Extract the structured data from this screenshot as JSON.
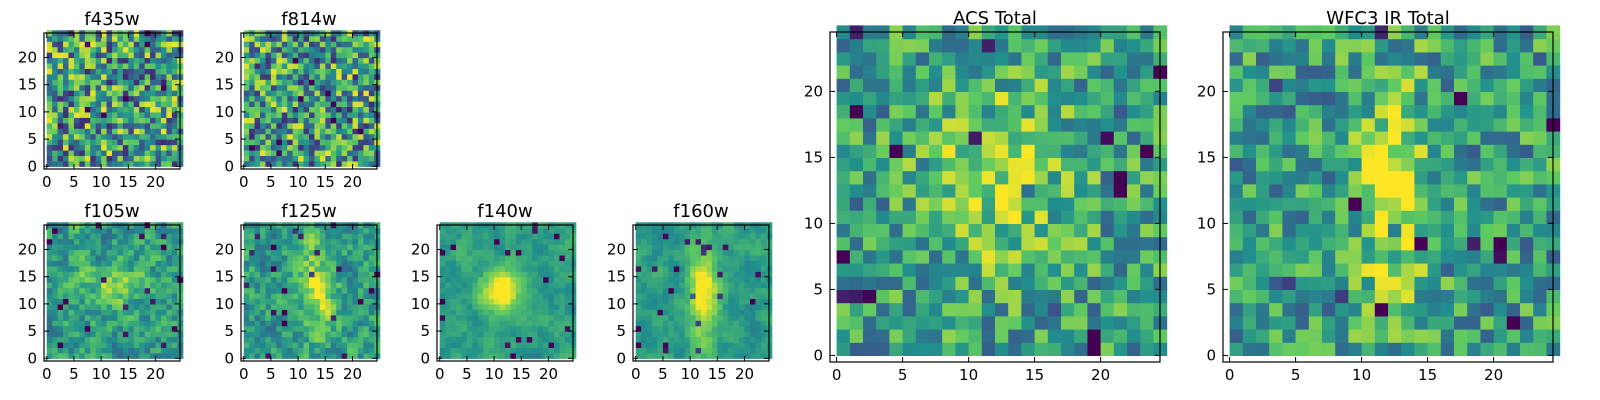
{
  "chart_data": [
    {
      "type": "heatmap",
      "title": "f435w",
      "noise": "strong",
      "feature": "none",
      "xlim": [
        -0.5,
        24.5
      ],
      "ylim": [
        -0.5,
        24.5
      ],
      "xticks": [
        "0",
        "5",
        "10",
        "15",
        "20"
      ],
      "yticks": [
        "0",
        "5",
        "10",
        "15",
        "20"
      ],
      "grid_size": [
        25,
        25
      ]
    },
    {
      "type": "heatmap",
      "title": "f814w",
      "noise": "strong",
      "feature": "none",
      "xlim": [
        -0.5,
        24.5
      ],
      "ylim": [
        -0.5,
        24.5
      ],
      "xticks": [
        "0",
        "5",
        "10",
        "15",
        "20"
      ],
      "yticks": [
        "0",
        "5",
        "10",
        "15",
        "20"
      ],
      "grid_size": [
        25,
        25
      ]
    },
    {
      "type": "heatmap",
      "title": "f105w",
      "noise": "moderate",
      "feature": "faint central source",
      "xlim": [
        -0.5,
        24.5
      ],
      "ylim": [
        -0.5,
        24.5
      ],
      "xticks": [
        "0",
        "5",
        "10",
        "15",
        "20"
      ],
      "yticks": [
        "0",
        "5",
        "10",
        "15",
        "20"
      ],
      "grid_size": [
        25,
        25
      ]
    },
    {
      "type": "heatmap",
      "title": "f125w",
      "noise": "moderate",
      "feature": "elongated central source",
      "xlim": [
        -0.5,
        24.5
      ],
      "ylim": [
        -0.5,
        24.5
      ],
      "xticks": [
        "0",
        "5",
        "10",
        "15",
        "20"
      ],
      "yticks": [
        "0",
        "5",
        "10",
        "15",
        "20"
      ],
      "grid_size": [
        25,
        25
      ]
    },
    {
      "type": "heatmap",
      "title": "f140w",
      "noise": "smooth",
      "feature": "bright central blob",
      "xlim": [
        -0.5,
        24.5
      ],
      "ylim": [
        -0.5,
        24.5
      ],
      "xticks": [
        "0",
        "5",
        "10",
        "15",
        "20"
      ],
      "yticks": [
        "0",
        "5",
        "10",
        "15",
        "20"
      ],
      "grid_size": [
        25,
        25
      ]
    },
    {
      "type": "heatmap",
      "title": "f160w",
      "noise": "smooth",
      "feature": "vertical central source",
      "xlim": [
        -0.5,
        24.5
      ],
      "ylim": [
        -0.5,
        24.5
      ],
      "xticks": [
        "0",
        "5",
        "10",
        "15",
        "20"
      ],
      "yticks": [
        "0",
        "5",
        "10",
        "15",
        "20"
      ],
      "grid_size": [
        25,
        25
      ]
    },
    {
      "type": "heatmap",
      "title": "ACS Total",
      "noise": "coarse",
      "feature": "mild central excess",
      "xlim": [
        -0.5,
        24.5
      ],
      "ylim": [
        -0.5,
        24.5
      ],
      "xticks": [
        "0",
        "5",
        "10",
        "15",
        "20"
      ],
      "yticks": [
        "0",
        "5",
        "10",
        "15",
        "20"
      ],
      "grid_size": [
        25,
        25
      ]
    },
    {
      "type": "heatmap",
      "title": "WFC3 IR Total",
      "noise": "coarse",
      "feature": "vertical central source",
      "xlim": [
        -0.5,
        24.5
      ],
      "ylim": [
        -0.5,
        24.5
      ],
      "xticks": [
        "0",
        "5",
        "10",
        "15",
        "20"
      ],
      "yticks": [
        "0",
        "5",
        "10",
        "15",
        "20"
      ],
      "grid_size": [
        25,
        25
      ]
    }
  ],
  "colormap": [
    "#440154",
    "#3b528b",
    "#21908d",
    "#5dc963",
    "#fde725"
  ]
}
